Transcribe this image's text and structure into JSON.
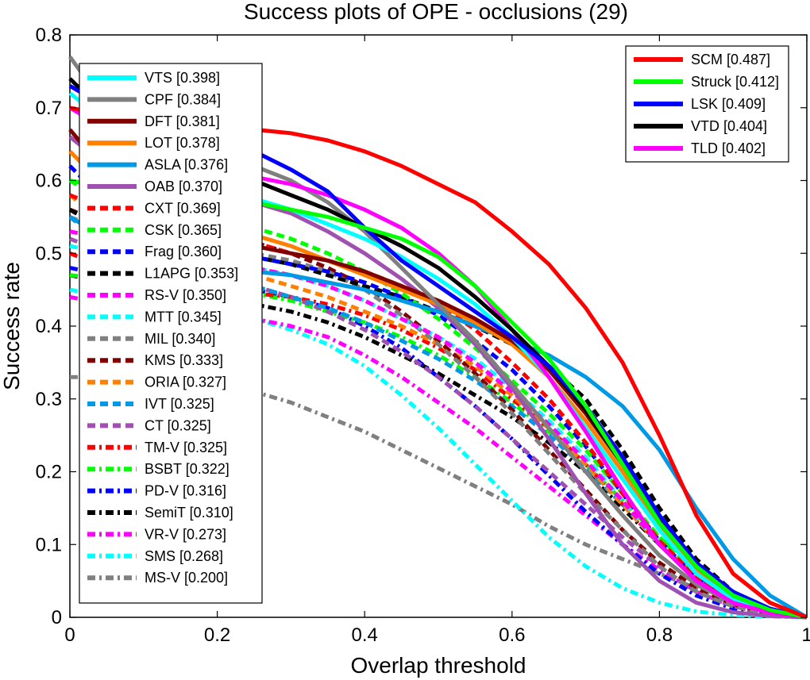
{
  "chart_data": {
    "type": "line",
    "title": "Success plots of OPE - occlusions (29)",
    "xlabel": "Overlap threshold",
    "ylabel": "Success rate",
    "xlim": [
      0,
      1
    ],
    "ylim": [
      0,
      0.8
    ],
    "xticks": [
      0,
      0.2,
      0.4,
      0.6,
      0.8,
      1
    ],
    "xtick_labels": [
      "0",
      "0.2",
      "0.4",
      "0.6",
      "0.8",
      "1"
    ],
    "yticks": [
      0,
      0.1,
      0.2,
      0.3,
      0.4,
      0.5,
      0.6,
      0.7,
      0.8
    ],
    "ytick_labels": [
      "0",
      "0.1",
      "0.2",
      "0.3",
      "0.4",
      "0.5",
      "0.6",
      "0.7",
      "0.8"
    ],
    "grid": false,
    "x": [
      0,
      0.05,
      0.1,
      0.15,
      0.2,
      0.25,
      0.3,
      0.35,
      0.4,
      0.45,
      0.5,
      0.55,
      0.6,
      0.65,
      0.7,
      0.75,
      0.8,
      0.85,
      0.9,
      0.95,
      1
    ],
    "legend_top_right": [
      "SCM [0.487]",
      "Struck [0.412]",
      "LSK [0.409]",
      "VTD [0.404]",
      "TLD [0.402]"
    ],
    "legend_top_left": [
      "VTS [0.398]",
      "CPF [0.384]",
      "DFT [0.381]",
      "LOT [0.378]",
      "ASLA [0.376]",
      "OAB [0.370]",
      "CXT [0.369]",
      "CSK [0.365]",
      "Frag [0.360]",
      "L1APG [0.353]",
      "RS-V [0.350]",
      "MTT [0.345]",
      "MIL [0.340]",
      "KMS [0.333]",
      "ORIA [0.327]",
      "IVT [0.325]",
      "CT [0.325]",
      "TM-V [0.325]",
      "BSBT [0.322]",
      "PD-V [0.316]",
      "SemiT [0.310]",
      "VR-V [0.273]",
      "SMS [0.268]",
      "MS-V [0.200]"
    ],
    "series": [
      {
        "name": "SCM [0.487]",
        "color": "#ff0000",
        "style": "solid",
        "values": [
          0.7,
          0.69,
          0.685,
          0.68,
          0.675,
          0.67,
          0.665,
          0.655,
          0.64,
          0.62,
          0.595,
          0.57,
          0.53,
          0.485,
          0.425,
          0.35,
          0.25,
          0.14,
          0.06,
          0.02,
          0.0
        ]
      },
      {
        "name": "Struck [0.412]",
        "color": "#00ff00",
        "style": "solid",
        "values": [
          0.6,
          0.59,
          0.585,
          0.58,
          0.575,
          0.57,
          0.56,
          0.55,
          0.535,
          0.52,
          0.495,
          0.455,
          0.405,
          0.355,
          0.29,
          0.21,
          0.13,
          0.07,
          0.03,
          0.01,
          0.0
        ]
      },
      {
        "name": "LSK [0.409]",
        "color": "#0000ff",
        "style": "solid",
        "values": [
          0.73,
          0.7,
          0.68,
          0.67,
          0.66,
          0.64,
          0.615,
          0.585,
          0.535,
          0.49,
          0.455,
          0.42,
          0.385,
          0.345,
          0.29,
          0.22,
          0.14,
          0.075,
          0.035,
          0.012,
          0.0
        ]
      },
      {
        "name": "VTD [0.404]",
        "color": "#000000",
        "style": "solid",
        "values": [
          0.74,
          0.69,
          0.66,
          0.64,
          0.62,
          0.6,
          0.58,
          0.56,
          0.535,
          0.51,
          0.48,
          0.44,
          0.395,
          0.345,
          0.285,
          0.21,
          0.135,
          0.07,
          0.03,
          0.01,
          0.0
        ]
      },
      {
        "name": "TLD [0.402]",
        "color": "#ff00ff",
        "style": "solid",
        "values": [
          0.7,
          0.67,
          0.65,
          0.63,
          0.615,
          0.605,
          0.595,
          0.58,
          0.56,
          0.535,
          0.5,
          0.455,
          0.395,
          0.33,
          0.255,
          0.175,
          0.1,
          0.05,
          0.02,
          0.006,
          0.0
        ]
      },
      {
        "name": "VTS [0.398]",
        "color": "#00ffff",
        "style": "solid",
        "values": [
          0.72,
          0.68,
          0.64,
          0.61,
          0.59,
          0.575,
          0.56,
          0.54,
          0.52,
          0.495,
          0.465,
          0.43,
          0.385,
          0.33,
          0.26,
          0.19,
          0.12,
          0.06,
          0.025,
          0.008,
          0.0
        ]
      },
      {
        "name": "CPF [0.384]",
        "color": "#808080",
        "style": "solid",
        "values": [
          0.77,
          0.7,
          0.66,
          0.64,
          0.63,
          0.62,
          0.6,
          0.57,
          0.53,
          0.48,
          0.43,
          0.38,
          0.32,
          0.26,
          0.2,
          0.14,
          0.085,
          0.045,
          0.02,
          0.006,
          0.0
        ]
      },
      {
        "name": "DFT [0.381]",
        "color": "#800000",
        "style": "solid",
        "values": [
          0.67,
          0.61,
          0.57,
          0.545,
          0.525,
          0.51,
          0.5,
          0.49,
          0.475,
          0.455,
          0.435,
          0.41,
          0.38,
          0.34,
          0.28,
          0.21,
          0.13,
          0.07,
          0.03,
          0.01,
          0.0
        ]
      },
      {
        "name": "LOT [0.378]",
        "color": "#ff8000",
        "style": "solid",
        "values": [
          0.64,
          0.59,
          0.56,
          0.545,
          0.535,
          0.525,
          0.51,
          0.49,
          0.47,
          0.45,
          0.43,
          0.405,
          0.375,
          0.33,
          0.27,
          0.2,
          0.125,
          0.065,
          0.03,
          0.01,
          0.0
        ]
      },
      {
        "name": "ASLA [0.376]",
        "color": "#0099e6",
        "style": "solid",
        "values": [
          0.55,
          0.52,
          0.505,
          0.495,
          0.485,
          0.475,
          0.47,
          0.46,
          0.45,
          0.435,
          0.42,
          0.4,
          0.38,
          0.36,
          0.33,
          0.29,
          0.23,
          0.15,
          0.08,
          0.03,
          0.0
        ]
      },
      {
        "name": "OAB [0.370]",
        "color": "#a050b0",
        "style": "solid",
        "values": [
          0.66,
          0.62,
          0.6,
          0.59,
          0.58,
          0.57,
          0.555,
          0.53,
          0.5,
          0.465,
          0.425,
          0.375,
          0.315,
          0.245,
          0.17,
          0.1,
          0.05,
          0.02,
          0.007,
          0.002,
          0.0
        ]
      },
      {
        "name": "CXT [0.369]",
        "color": "#ff0000",
        "style": "dash",
        "values": [
          0.58,
          0.56,
          0.545,
          0.535,
          0.525,
          0.515,
          0.5,
          0.49,
          0.475,
          0.455,
          0.43,
          0.395,
          0.35,
          0.3,
          0.24,
          0.17,
          0.105,
          0.055,
          0.025,
          0.008,
          0.0
        ]
      },
      {
        "name": "CSK [0.365]",
        "color": "#00ff00",
        "style": "dash",
        "values": [
          0.6,
          0.57,
          0.56,
          0.55,
          0.545,
          0.535,
          0.52,
          0.5,
          0.475,
          0.445,
          0.41,
          0.37,
          0.325,
          0.28,
          0.23,
          0.17,
          0.11,
          0.06,
          0.028,
          0.008,
          0.0
        ]
      },
      {
        "name": "Frag [0.360]",
        "color": "#0000ff",
        "style": "dash",
        "values": [
          0.62,
          0.57,
          0.54,
          0.52,
          0.505,
          0.495,
          0.485,
          0.475,
          0.46,
          0.44,
          0.415,
          0.38,
          0.34,
          0.29,
          0.235,
          0.17,
          0.105,
          0.055,
          0.025,
          0.008,
          0.0
        ]
      },
      {
        "name": "L1APG [0.353]",
        "color": "#000000",
        "style": "dash",
        "values": [
          0.56,
          0.53,
          0.515,
          0.505,
          0.5,
          0.495,
          0.485,
          0.47,
          0.455,
          0.44,
          0.42,
          0.4,
          0.375,
          0.345,
          0.3,
          0.23,
          0.15,
          0.08,
          0.035,
          0.01,
          0.0
        ]
      },
      {
        "name": "RS-V [0.350]",
        "color": "#ff00ff",
        "style": "dash",
        "values": [
          0.53,
          0.52,
          0.51,
          0.5,
          0.49,
          0.48,
          0.47,
          0.455,
          0.435,
          0.41,
          0.385,
          0.35,
          0.31,
          0.265,
          0.215,
          0.16,
          0.1,
          0.055,
          0.025,
          0.008,
          0.0
        ]
      },
      {
        "name": "MTT [0.345]",
        "color": "#00ffff",
        "style": "dash",
        "values": [
          0.51,
          0.5,
          0.495,
          0.49,
          0.485,
          0.48,
          0.47,
          0.455,
          0.435,
          0.41,
          0.385,
          0.355,
          0.315,
          0.27,
          0.22,
          0.16,
          0.1,
          0.05,
          0.02,
          0.006,
          0.0
        ]
      },
      {
        "name": "MIL [0.340]",
        "color": "#808080",
        "style": "dash",
        "values": [
          0.55,
          0.53,
          0.52,
          0.515,
          0.51,
          0.5,
          0.49,
          0.475,
          0.45,
          0.415,
          0.375,
          0.33,
          0.28,
          0.225,
          0.17,
          0.12,
          0.07,
          0.035,
          0.015,
          0.004,
          0.0
        ]
      },
      {
        "name": "KMS [0.333]",
        "color": "#800000",
        "style": "dash",
        "values": [
          0.56,
          0.54,
          0.53,
          0.525,
          0.52,
          0.515,
          0.5,
          0.48,
          0.455,
          0.42,
          0.38,
          0.335,
          0.285,
          0.23,
          0.175,
          0.12,
          0.075,
          0.04,
          0.018,
          0.005,
          0.0
        ]
      },
      {
        "name": "ORIA [0.327]",
        "color": "#ff8000",
        "style": "dash",
        "values": [
          0.58,
          0.54,
          0.52,
          0.5,
          0.485,
          0.47,
          0.455,
          0.44,
          0.42,
          0.4,
          0.375,
          0.345,
          0.305,
          0.26,
          0.21,
          0.155,
          0.1,
          0.055,
          0.025,
          0.008,
          0.0
        ]
      },
      {
        "name": "IVT [0.325]",
        "color": "#0099e6",
        "style": "dash",
        "values": [
          0.55,
          0.51,
          0.49,
          0.475,
          0.465,
          0.455,
          0.44,
          0.425,
          0.405,
          0.38,
          0.355,
          0.325,
          0.29,
          0.25,
          0.205,
          0.155,
          0.1,
          0.055,
          0.025,
          0.008,
          0.0
        ]
      },
      {
        "name": "CT [0.325]",
        "color": "#a050b0",
        "style": "dash",
        "values": [
          0.52,
          0.5,
          0.49,
          0.48,
          0.47,
          0.455,
          0.44,
          0.42,
          0.395,
          0.365,
          0.33,
          0.29,
          0.245,
          0.2,
          0.155,
          0.11,
          0.07,
          0.035,
          0.015,
          0.004,
          0.0
        ]
      },
      {
        "name": "TM-V [0.325]",
        "color": "#ff0000",
        "style": "dashdot",
        "values": [
          0.5,
          0.48,
          0.47,
          0.46,
          0.45,
          0.445,
          0.44,
          0.43,
          0.415,
          0.395,
          0.37,
          0.34,
          0.3,
          0.26,
          0.21,
          0.155,
          0.1,
          0.055,
          0.025,
          0.008,
          0.0
        ]
      },
      {
        "name": "BSBT [0.322]",
        "color": "#00ff00",
        "style": "dashdot",
        "values": [
          0.47,
          0.465,
          0.46,
          0.455,
          0.45,
          0.445,
          0.435,
          0.42,
          0.405,
          0.385,
          0.36,
          0.33,
          0.295,
          0.255,
          0.21,
          0.16,
          0.11,
          0.06,
          0.027,
          0.008,
          0.0
        ]
      },
      {
        "name": "PD-V [0.316]",
        "color": "#0000ff",
        "style": "dashdot",
        "values": [
          0.48,
          0.47,
          0.465,
          0.46,
          0.455,
          0.45,
          0.44,
          0.425,
          0.4,
          0.37,
          0.33,
          0.29,
          0.245,
          0.195,
          0.145,
          0.1,
          0.06,
          0.03,
          0.012,
          0.003,
          0.0
        ]
      },
      {
        "name": "SemiT [0.310]",
        "color": "#000000",
        "style": "dashdot",
        "values": [
          0.47,
          0.46,
          0.45,
          0.44,
          0.435,
          0.43,
          0.42,
          0.405,
          0.385,
          0.36,
          0.335,
          0.305,
          0.275,
          0.24,
          0.2,
          0.15,
          0.1,
          0.055,
          0.025,
          0.008,
          0.0
        ]
      },
      {
        "name": "VR-V [0.273]",
        "color": "#ff00ff",
        "style": "dashdot",
        "values": [
          0.44,
          0.43,
          0.425,
          0.42,
          0.415,
          0.41,
          0.4,
          0.385,
          0.36,
          0.33,
          0.295,
          0.26,
          0.22,
          0.18,
          0.14,
          0.1,
          0.065,
          0.035,
          0.015,
          0.004,
          0.0
        ]
      },
      {
        "name": "SMS [0.268]",
        "color": "#00ffff",
        "style": "dashdot",
        "values": [
          0.45,
          0.44,
          0.435,
          0.425,
          0.42,
          0.41,
          0.395,
          0.375,
          0.345,
          0.305,
          0.26,
          0.21,
          0.16,
          0.11,
          0.07,
          0.04,
          0.02,
          0.008,
          0.003,
          0.001,
          0.0
        ]
      },
      {
        "name": "MS-V [0.200]",
        "color": "#808080",
        "style": "dashdot",
        "values": [
          0.33,
          0.33,
          0.325,
          0.32,
          0.315,
          0.31,
          0.295,
          0.275,
          0.255,
          0.23,
          0.205,
          0.18,
          0.155,
          0.125,
          0.1,
          0.08,
          0.06,
          0.04,
          0.02,
          0.007,
          0.0
        ]
      }
    ]
  }
}
